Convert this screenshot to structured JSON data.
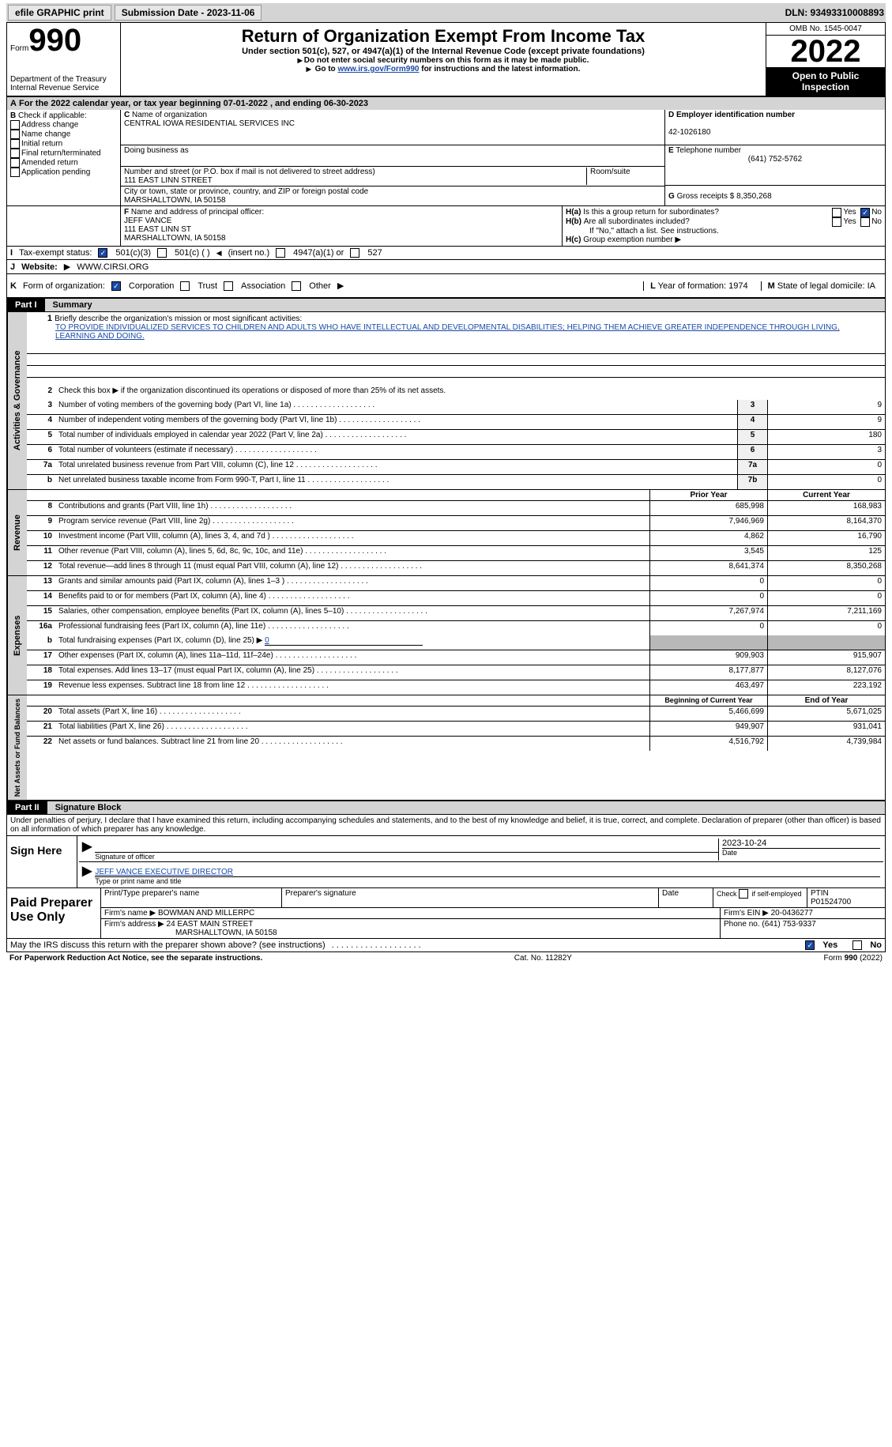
{
  "toolbar": {
    "efile": "efile GRAPHIC print",
    "submission_label": "Submission Date - 2023-11-06",
    "dln_label": "DLN: 93493310008893"
  },
  "header": {
    "form_prefix": "Form",
    "form_num": "990",
    "dept": "Department of the Treasury",
    "irs": "Internal Revenue Service",
    "title": "Return of Organization Exempt From Income Tax",
    "subtitle": "Under section 501(c), 527, or 4947(a)(1) of the Internal Revenue Code (except private foundations)",
    "instr1": "Do not enter social security numbers on this form as it may be made public.",
    "instr2_pre": "Go to ",
    "instr2_link": "www.irs.gov/Form990",
    "instr2_post": " for instructions and the latest information.",
    "omb": "OMB No. 1545-0047",
    "year": "2022",
    "open": "Open to Public Inspection"
  },
  "line_a": {
    "text": "For the 2022 calendar year, or tax year beginning 07-01-2022   , and ending 06-30-2023"
  },
  "block_b": {
    "header": "Check if applicable:",
    "opts": [
      "Address change",
      "Name change",
      "Initial return",
      "Final return/terminated",
      "Amended return",
      "Application pending"
    ]
  },
  "block_c": {
    "name_label": "Name of organization",
    "name": "CENTRAL IOWA RESIDENTIAL SERVICES INC",
    "dba_label": "Doing business as",
    "street_label": "Number and street (or P.O. box if mail is not delivered to street address)",
    "room_label": "Room/suite",
    "street": "111 EAST LINN STREET",
    "city_label": "City or town, state or province, country, and ZIP or foreign postal code",
    "city": "MARSHALLTOWN, IA  50158"
  },
  "block_d": {
    "label": "Employer identification number",
    "val": "42-1026180"
  },
  "block_e": {
    "label": "Telephone number",
    "val": "(641) 752-5762"
  },
  "block_g": {
    "label": "Gross receipts $",
    "val": "8,350,268"
  },
  "block_f": {
    "label": "Name and address of principal officer:",
    "name": "JEFF VANCE",
    "street": "111 EAST LINN ST",
    "city": "MARSHALLTOWN, IA  50158"
  },
  "block_h": {
    "a_label": "Is this a group return for subordinates?",
    "b_label": "Are all subordinates included?",
    "b_note": "If \"No,\" attach a list. See instructions.",
    "c_label": "Group exemption number"
  },
  "line_i": {
    "label": "Tax-exempt status:",
    "opt1": "501(c)(3)",
    "opt2": "501(c) (  )",
    "opt2_note": "(insert no.)",
    "opt3": "4947(a)(1) or",
    "opt4": "527"
  },
  "line_j": {
    "label": "Website:",
    "val": "WWW.CIRSI.ORG"
  },
  "line_k": {
    "label": "Form of organization:",
    "opts": [
      "Corporation",
      "Trust",
      "Association",
      "Other"
    ]
  },
  "line_l": {
    "label": "Year of formation:",
    "val": "1974"
  },
  "line_m": {
    "label": "State of legal domicile:",
    "val": "IA"
  },
  "part1": {
    "label": "Part I",
    "title": "Summary"
  },
  "summary": {
    "sections": {
      "gov": "Activities & Governance",
      "rev": "Revenue",
      "exp": "Expenses",
      "net": "Net Assets or Fund Balances"
    },
    "line1_label": "Briefly describe the organization's mission or most significant activities:",
    "line1_text": "TO PROVIDE INDIVIDUALIZED SERVICES TO CHILDREN AND ADULTS WHO HAVE INTELLECTUAL AND DEVELOPMENTAL DISABILITIES; HELPING THEM ACHIEVE GREATER INDEPENDENCE THROUGH LIVING, LEARNING AND DOING.",
    "line2": "Check this box ▶    if the organization discontinued its operations or disposed of more than 25% of its net assets.",
    "rows_gov": [
      {
        "n": "3",
        "label": "Number of voting members of the governing body (Part VI, line 1a)",
        "box": "3",
        "val": "9"
      },
      {
        "n": "4",
        "label": "Number of independent voting members of the governing body (Part VI, line 1b)",
        "box": "4",
        "val": "9"
      },
      {
        "n": "5",
        "label": "Total number of individuals employed in calendar year 2022 (Part V, line 2a)",
        "box": "5",
        "val": "180"
      },
      {
        "n": "6",
        "label": "Total number of volunteers (estimate if necessary)",
        "box": "6",
        "val": "3"
      },
      {
        "n": "7a",
        "label": "Total unrelated business revenue from Part VIII, column (C), line 12",
        "box": "7a",
        "val": "0"
      },
      {
        "n": "b",
        "label": "Net unrelated business taxable income from Form 990-T, Part I, line 11",
        "box": "7b",
        "val": "0"
      }
    ],
    "hdr_prior": "Prior Year",
    "hdr_current": "Current Year",
    "rows_rev": [
      {
        "n": "8",
        "label": "Contributions and grants (Part VIII, line 1h)",
        "prior": "685,998",
        "cur": "168,983"
      },
      {
        "n": "9",
        "label": "Program service revenue (Part VIII, line 2g)",
        "prior": "7,946,969",
        "cur": "8,164,370"
      },
      {
        "n": "10",
        "label": "Investment income (Part VIII, column (A), lines 3, 4, and 7d )",
        "prior": "4,862",
        "cur": "16,790"
      },
      {
        "n": "11",
        "label": "Other revenue (Part VIII, column (A), lines 5, 6d, 8c, 9c, 10c, and 11e)",
        "prior": "3,545",
        "cur": "125"
      },
      {
        "n": "12",
        "label": "Total revenue—add lines 8 through 11 (must equal Part VIII, column (A), line 12)",
        "prior": "8,641,374",
        "cur": "8,350,268"
      }
    ],
    "rows_exp": [
      {
        "n": "13",
        "label": "Grants and similar amounts paid (Part IX, column (A), lines 1–3 )",
        "prior": "0",
        "cur": "0"
      },
      {
        "n": "14",
        "label": "Benefits paid to or for members (Part IX, column (A), line 4)",
        "prior": "0",
        "cur": "0"
      },
      {
        "n": "15",
        "label": "Salaries, other compensation, employee benefits (Part IX, column (A), lines 5–10)",
        "prior": "7,267,974",
        "cur": "7,211,169"
      },
      {
        "n": "16a",
        "label": "Professional fundraising fees (Part IX, column (A), line 11e)",
        "prior": "0",
        "cur": "0"
      }
    ],
    "line16b_label": "Total fundraising expenses (Part IX, column (D), line 25) ▶",
    "line16b_val": "0",
    "rows_exp2": [
      {
        "n": "17",
        "label": "Other expenses (Part IX, column (A), lines 11a–11d, 11f–24e)",
        "prior": "909,903",
        "cur": "915,907"
      },
      {
        "n": "18",
        "label": "Total expenses. Add lines 13–17 (must equal Part IX, column (A), line 25)",
        "prior": "8,177,877",
        "cur": "8,127,076"
      },
      {
        "n": "19",
        "label": "Revenue less expenses. Subtract line 18 from line 12",
        "prior": "463,497",
        "cur": "223,192"
      }
    ],
    "hdr_begin": "Beginning of Current Year",
    "hdr_end": "End of Year",
    "rows_net": [
      {
        "n": "20",
        "label": "Total assets (Part X, line 16)",
        "prior": "5,466,699",
        "cur": "5,671,025"
      },
      {
        "n": "21",
        "label": "Total liabilities (Part X, line 26)",
        "prior": "949,907",
        "cur": "931,041"
      },
      {
        "n": "22",
        "label": "Net assets or fund balances. Subtract line 21 from line 20",
        "prior": "4,516,792",
        "cur": "4,739,984"
      }
    ]
  },
  "part2": {
    "label": "Part II",
    "title": "Signature Block",
    "perjury": "Under penalties of perjury, I declare that I have examined this return, including accompanying schedules and statements, and to the best of my knowledge and belief, it is true, correct, and complete. Declaration of preparer (other than officer) is based on all information of which preparer has any knowledge."
  },
  "sign": {
    "label": "Sign Here",
    "sig_label": "Signature of officer",
    "date": "2023-10-24",
    "date_label": "Date",
    "name": "JEFF VANCE  EXECUTIVE DIRECTOR",
    "name_label": "Type or print name and title"
  },
  "preparer": {
    "label": "Paid Preparer Use Only",
    "name_label": "Print/Type preparer's name",
    "sig_label": "Preparer's signature",
    "date_label": "Date",
    "check_label": "Check       if self-employed",
    "ptin_label": "PTIN",
    "ptin": "P01524700",
    "firm_label": "Firm's name   ▶",
    "firm_name": "BOWMAN AND MILLERPC",
    "ein_label": "Firm's EIN ▶",
    "ein": "20-0436277",
    "addr_label": "Firm's address ▶",
    "addr1": "24 EAST MAIN STREET",
    "addr2": "MARSHALLTOWN, IA  50158",
    "phone_label": "Phone no.",
    "phone": "(641) 753-9337",
    "discuss": "May the IRS discuss this return with the preparer shown above? (see instructions)"
  },
  "footer": {
    "left": "For Paperwork Reduction Act Notice, see the separate instructions.",
    "center": "Cat. No. 11282Y",
    "right": "Form 990 (2022)"
  }
}
